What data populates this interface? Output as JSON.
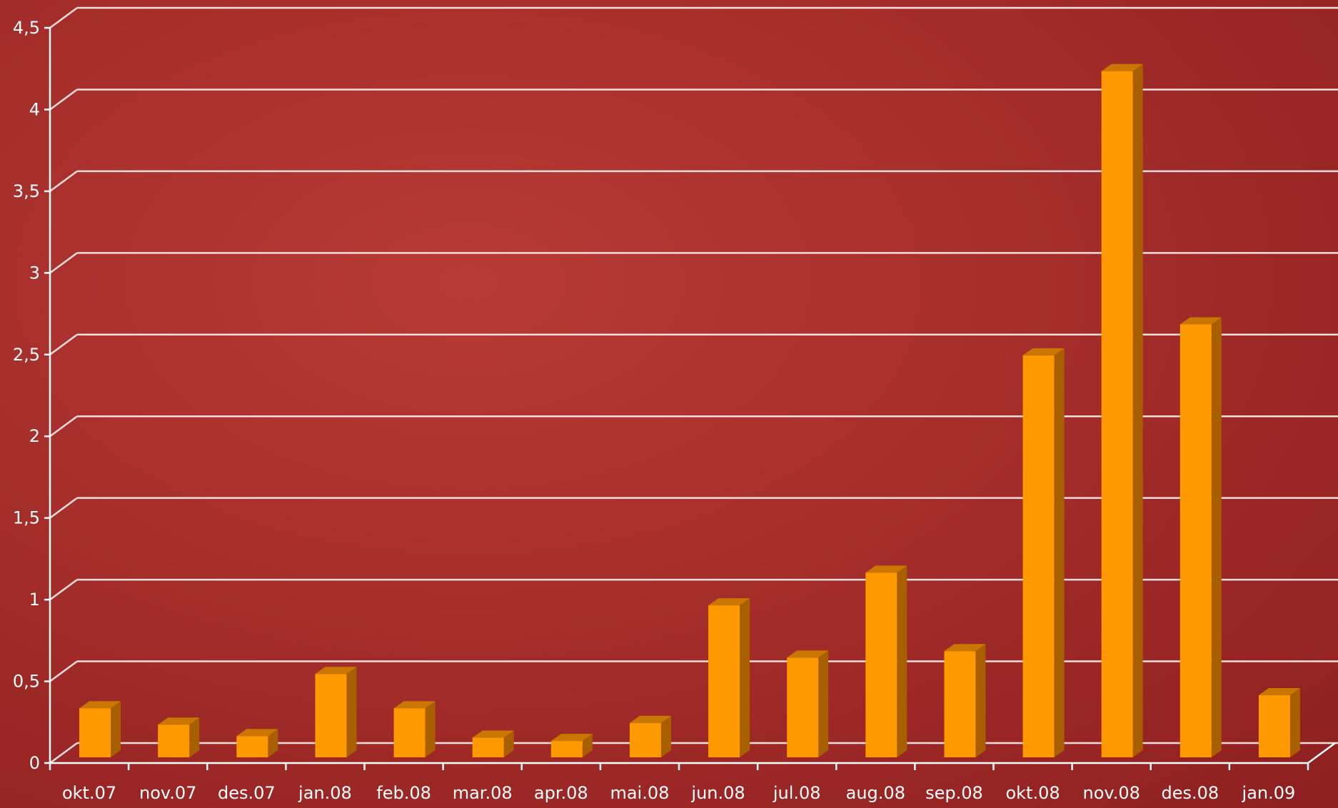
{
  "chart_data": {
    "type": "bar",
    "categories": [
      "okt.07",
      "nov.07",
      "des.07",
      "jan.08",
      "feb.08",
      "mar.08",
      "apr.08",
      "mai.08",
      "jun.08",
      "jul.08",
      "aug.08",
      "sep.08",
      "okt.08",
      "nov.08",
      "des.08",
      "jan.09"
    ],
    "values": [
      0.3,
      0.2,
      0.13,
      0.51,
      0.3,
      0.12,
      0.1,
      0.21,
      0.93,
      0.61,
      1.13,
      0.65,
      2.46,
      4.2,
      2.65,
      0.38
    ],
    "ylim": [
      0,
      4.5
    ],
    "yticks": [
      "0",
      "0,5",
      "1",
      "1,5",
      "2",
      "2,5",
      "3",
      "3,5",
      "4",
      "4,5"
    ],
    "grid": true,
    "colors": {
      "background": "#8f2020",
      "background_light": "#b83a34",
      "gridline": "#f3dede",
      "bar_front": "#ff9900",
      "bar_top": "#c97700",
      "bar_side": "#a85f00",
      "axis": "#ffffff"
    }
  }
}
